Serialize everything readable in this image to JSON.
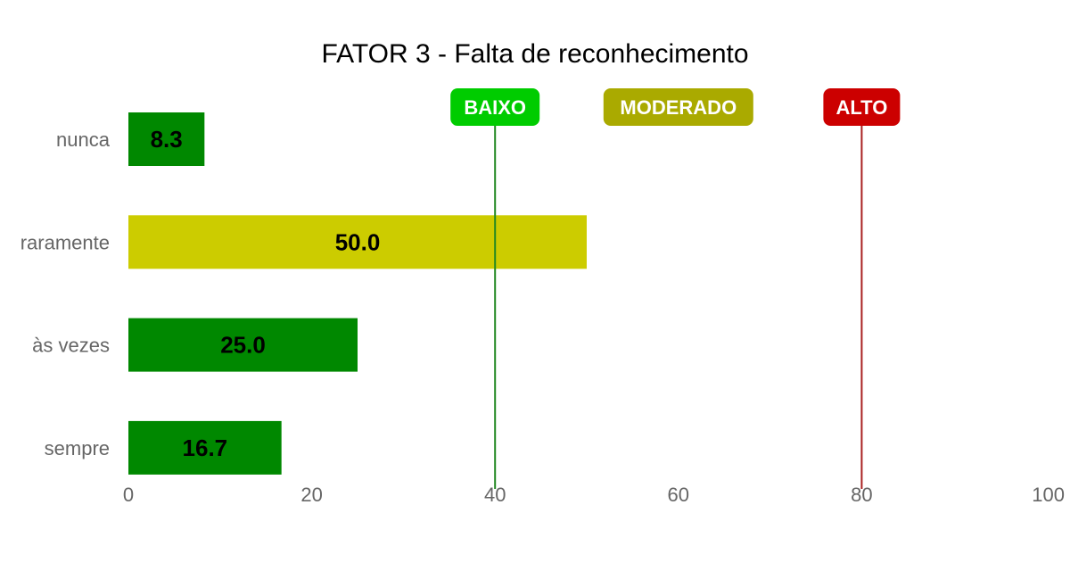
{
  "chart_data": {
    "type": "bar",
    "orientation": "horizontal",
    "title": "FATOR 3 - Falta de reconhecimento",
    "categories": [
      "nunca",
      "raramente",
      "às vezes",
      "sempre"
    ],
    "values": [
      8.3,
      50.0,
      25.0,
      16.7
    ],
    "value_labels": [
      "8.3",
      "50.0",
      "25.0",
      "16.7"
    ],
    "bar_colors": [
      "#008800",
      "#cccc00",
      "#008800",
      "#008800"
    ],
    "xlim": [
      0,
      100
    ],
    "xticks": [
      0,
      20,
      40,
      60,
      80,
      100
    ],
    "grid": false,
    "reference_lines": [
      {
        "label": "BAIXO",
        "badge_at": 40,
        "line_at": 40,
        "color": "#00cc00",
        "line_color": "#228822"
      },
      {
        "label": "MODERADO",
        "badge_at": 60,
        "line_at": null,
        "color": "#aaaa00",
        "line_color": null
      },
      {
        "label": "ALTO",
        "badge_at": 80,
        "line_at": 80,
        "color": "#cc0000",
        "line_color": "#aa2222"
      }
    ]
  }
}
